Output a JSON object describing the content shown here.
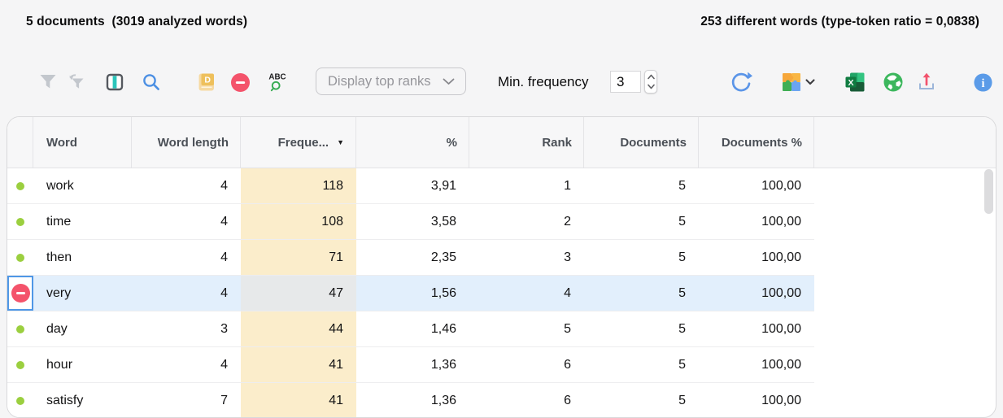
{
  "stats_bar": {
    "left": "5 documents  (3019 analyzed words)",
    "right": "253 different words (type-token ratio = 0,0838)"
  },
  "toolbar": {
    "icons": [
      "filter-funnel-icon",
      "clear-filter-funnel-icon",
      "columns-layout-icon",
      "search-magnifier-icon",
      "dictionary-book-icon",
      "exclude-word-minus-icon",
      "spellcheck-abc-icon",
      "refresh-icon",
      "puzzle-plugin-icon",
      "chevron-down-icon",
      "excel-export-icon",
      "web-globe-icon",
      "share-upload-icon",
      "info-icon"
    ],
    "glyphs": {
      "dictionary_letter": "D",
      "spellcheck_text": "ABC",
      "excel_letter": "X",
      "info_letter": "i"
    },
    "display_ranks": {
      "value": "Display top ranks"
    },
    "min_frequency": {
      "label": "Min. frequency",
      "value": "3"
    }
  },
  "table": {
    "sort": {
      "column": "frequency",
      "direction": "desc",
      "indicator": "▼"
    },
    "columns": [
      {
        "key": "word",
        "label": "Word",
        "align": "left"
      },
      {
        "key": "word_length",
        "label": "Word length",
        "align": "right"
      },
      {
        "key": "frequency",
        "label": "Freque...",
        "align": "right",
        "highlight": true
      },
      {
        "key": "percent",
        "label": "%",
        "align": "right"
      },
      {
        "key": "rank",
        "label": "Rank",
        "align": "right"
      },
      {
        "key": "documents",
        "label": "Documents",
        "align": "right"
      },
      {
        "key": "documents_percent",
        "label": "Documents %",
        "align": "right"
      }
    ],
    "rows": [
      {
        "word": "work",
        "word_length": "4",
        "frequency": "118",
        "percent": "3,91",
        "rank": "1",
        "documents": "5",
        "documents_percent": "100,00",
        "selected": false
      },
      {
        "word": "time",
        "word_length": "4",
        "frequency": "108",
        "percent": "3,58",
        "rank": "2",
        "documents": "5",
        "documents_percent": "100,00",
        "selected": false
      },
      {
        "word": "then",
        "word_length": "4",
        "frequency": "71",
        "percent": "2,35",
        "rank": "3",
        "documents": "5",
        "documents_percent": "100,00",
        "selected": false
      },
      {
        "word": "very",
        "word_length": "4",
        "frequency": "47",
        "percent": "1,56",
        "rank": "4",
        "documents": "5",
        "documents_percent": "100,00",
        "selected": true
      },
      {
        "word": "day",
        "word_length": "3",
        "frequency": "44",
        "percent": "1,46",
        "rank": "5",
        "documents": "5",
        "documents_percent": "100,00",
        "selected": false
      },
      {
        "word": "hour",
        "word_length": "4",
        "frequency": "41",
        "percent": "1,36",
        "rank": "6",
        "documents": "5",
        "documents_percent": "100,00",
        "selected": false
      },
      {
        "word": "satisfy",
        "word_length": "7",
        "frequency": "41",
        "percent": "1,36",
        "rank": "6",
        "documents": "5",
        "documents_percent": "100,00",
        "selected": false
      }
    ]
  },
  "colors": {
    "accent_blue": "#4b8fe3",
    "selection_blue": "#e2effc",
    "selection_border_blue": "#4f97e6",
    "frequency_highlight": "#fbedcb",
    "remove_red": "#f4536b",
    "dot_green": "#9bcf3f",
    "teal_stripe": "#2cc5bb",
    "excel_green": "#107c41",
    "globe_green": "#3cb75d",
    "upload_pink": "#f2536d",
    "info_blue": "#5b9be8"
  }
}
